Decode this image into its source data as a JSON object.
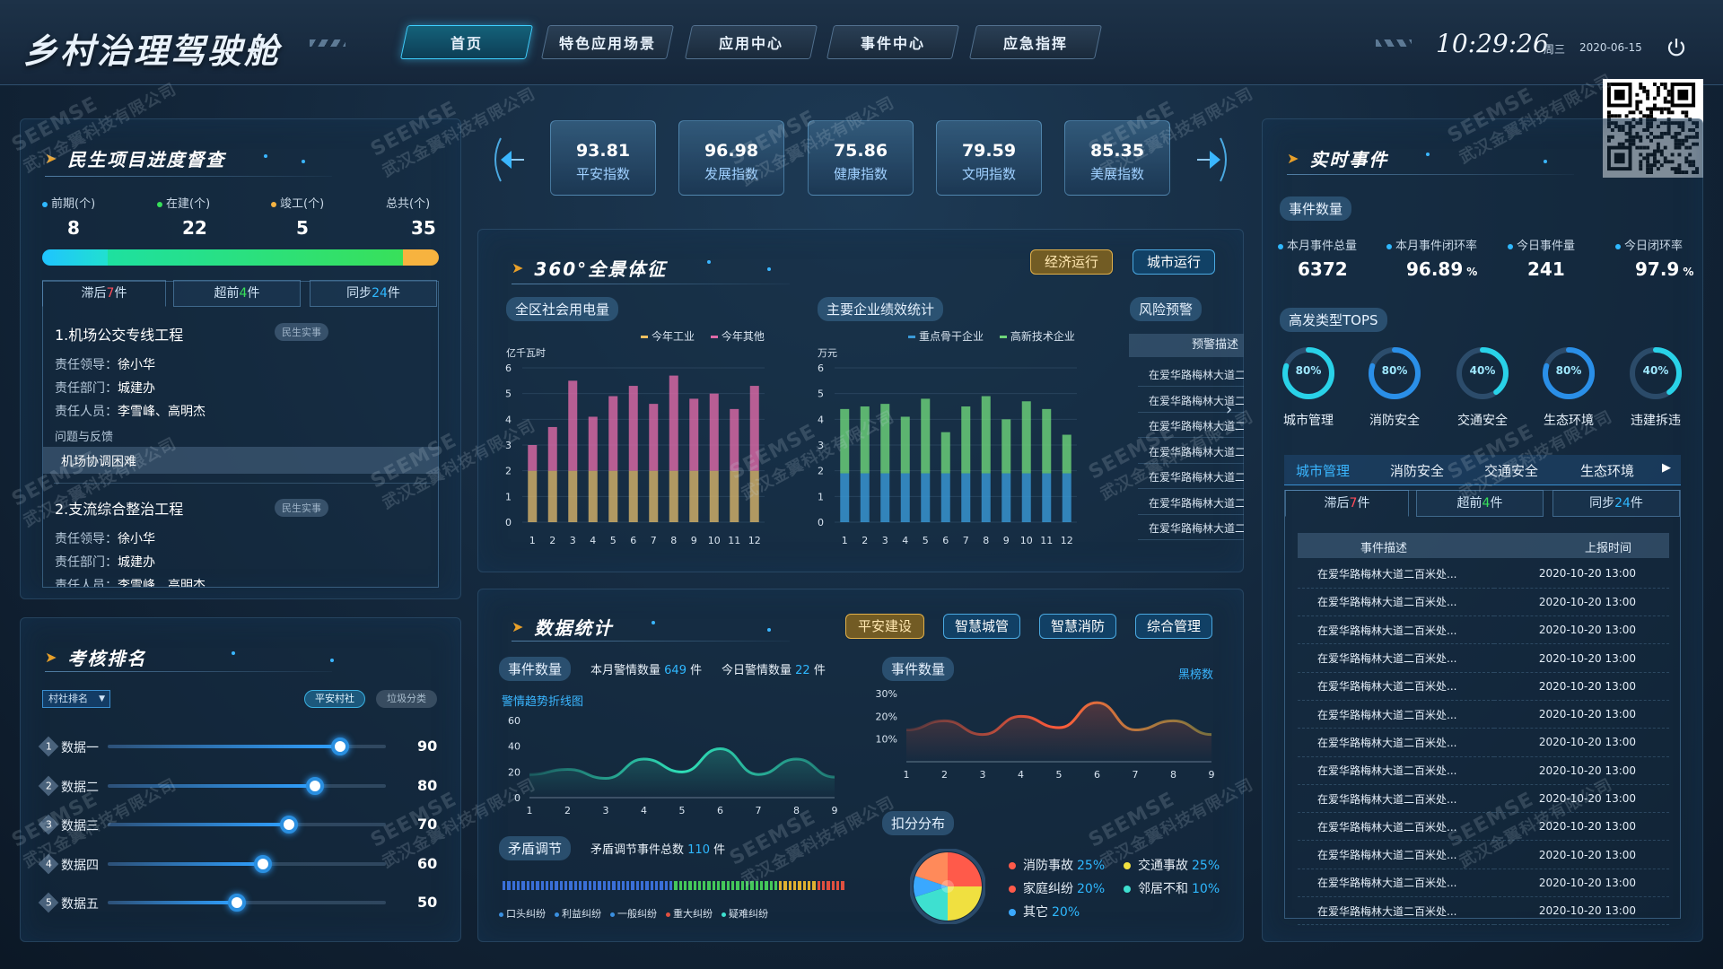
{
  "header": {
    "title": "乡村治理驾驶舱",
    "nav": [
      "首页",
      "特色应用场景",
      "应用中心",
      "事件中心",
      "应急指挥"
    ],
    "time": "10:29:26",
    "weekday": "周三",
    "date": "2020-06-15"
  },
  "indices": [
    {
      "value": "93.81",
      "label": "平安指数"
    },
    {
      "value": "96.98",
      "label": "发展指数"
    },
    {
      "value": "75.86",
      "label": "健康指数"
    },
    {
      "value": "79.59",
      "label": "文明指数"
    },
    {
      "value": "85.35",
      "label": "美展指数"
    }
  ],
  "progress": {
    "title": "民生项目进度督查",
    "stats": [
      {
        "label": "前期(个)",
        "value": "8",
        "color": "#2fb8ff"
      },
      {
        "label": "在建(个)",
        "value": "22",
        "color": "#37e05a"
      },
      {
        "label": "竣工(个)",
        "value": "5",
        "color": "#f5b342"
      },
      {
        "label": "总共(个)",
        "value": "35",
        "color": ""
      }
    ],
    "tabs": [
      {
        "pre": "滞后",
        "num": "7",
        "post": "件"
      },
      {
        "pre": "超前",
        "num": "4",
        "post": "件"
      },
      {
        "pre": "同步",
        "num": "24",
        "post": "件"
      }
    ],
    "projects": [
      {
        "name": "1.机场公交专线工程",
        "tag": "民生实事",
        "leader_label": "责任领导：",
        "leader": "徐小华",
        "dept_label": "责任部门：",
        "dept": "城建办",
        "staff_label": "责任人员：",
        "staff": "李雪峰、高明杰",
        "issue_label": "问题与反馈",
        "issue": "机场协调困难"
      },
      {
        "name": "2.支流综合整治工程",
        "tag": "民生实事",
        "leader_label": "责任领导：",
        "leader": "徐小华",
        "dept_label": "责任部门：",
        "dept": "城建办",
        "staff_label": "责任人员：",
        "staff": "李雪峰、高明杰"
      }
    ]
  },
  "ranking": {
    "title": "考核排名",
    "select": "村社排名",
    "buttons": [
      "平安村社",
      "垃圾分类"
    ],
    "items": [
      {
        "rank": "1",
        "name": "数据一",
        "value": 90
      },
      {
        "rank": "2",
        "name": "数据二",
        "value": 80
      },
      {
        "rank": "3",
        "name": "数据三",
        "value": 70
      },
      {
        "rank": "4",
        "name": "数据四",
        "value": 60
      },
      {
        "rank": "5",
        "name": "数据五",
        "value": 50
      }
    ]
  },
  "panorama": {
    "title": "360°全景体征",
    "buttons": [
      "经济运行",
      "城市运行"
    ],
    "power": {
      "title": "全区社会用电量",
      "unit": "亿千瓦时",
      "legend": [
        "今年工业",
        "今年其他"
      ]
    },
    "perf": {
      "title": "主要企业绩效统计",
      "unit": "万元",
      "legend": [
        "重点骨干企业",
        "高新技术企业"
      ]
    },
    "risk": {
      "title": "风险预警",
      "header": "预警描述",
      "rows": [
        "在爱华路梅林大道二",
        "在爱华路梅林大道二",
        "在爱华路梅林大道二",
        "在爱华路梅林大道二",
        "在爱华路梅林大道二",
        "在爱华路梅林大道二",
        "在爱华路梅林大道二"
      ]
    }
  },
  "stats": {
    "title": "数据统计",
    "buttons": [
      "平安建设",
      "智慧城管",
      "智慧消防",
      "综合管理"
    ],
    "events_chip": "事件数量",
    "month_label": "本月警情数量",
    "month_value": "649",
    "month_unit": "件",
    "today_label": "今日警情数量",
    "today_value": "22",
    "today_unit": "件",
    "trend_title": "警情趋势折线图",
    "events_chip2": "事件数量",
    "blacklist": "黑榜数",
    "conflict_chip": "矛盾调节",
    "conflict_label": "矛盾调节事件总数",
    "conflict_value": "110",
    "conflict_unit": "件",
    "conflict_legend": [
      "口头纠纷",
      "利益纠纷",
      "一般纠纷",
      "重大纠纷",
      "疑难纠纷"
    ],
    "deduct_chip": "扣分分布",
    "pie_legend": [
      {
        "name": "消防事故",
        "value": "25%",
        "color": "#ff5a4a"
      },
      {
        "name": "交通事故",
        "value": "25%",
        "color": "#f0e040"
      },
      {
        "name": "家庭纠纷",
        "value": "20%",
        "color": "#ff5a4a"
      },
      {
        "name": "邻居不和",
        "value": "10%",
        "color": "#3ee0d0"
      },
      {
        "name": "其它",
        "value": "20%",
        "color": "#3aa8ff"
      }
    ]
  },
  "realtime": {
    "title": "实时事件",
    "count_chip": "事件数量",
    "metrics": [
      {
        "label": "本月事件总量",
        "value": "6372",
        "unit": ""
      },
      {
        "label": "本月事件闭环率",
        "value": "96.89",
        "unit": "%"
      },
      {
        "label": "今日事件量",
        "value": "241",
        "unit": ""
      },
      {
        "label": "今日闭环率",
        "value": "97.9",
        "unit": "%"
      }
    ],
    "tops_chip": "高发类型TOPS",
    "rings": [
      {
        "pct": "80%",
        "label": "城市管理",
        "value": 0.8
      },
      {
        "pct": "80%",
        "label": "消防安全",
        "value": 0.8
      },
      {
        "pct": "40%",
        "label": "交通安全",
        "value": 0.4
      },
      {
        "pct": "80%",
        "label": "生态环境",
        "value": 0.8
      },
      {
        "pct": "40%",
        "label": "违建拆违",
        "value": 0.4
      }
    ],
    "cat_tabs": [
      "城市管理",
      "消防安全",
      "交通安全",
      "生态环境"
    ],
    "sub_tabs": [
      {
        "pre": "滞后",
        "num": "7",
        "post": "件"
      },
      {
        "pre": "超前",
        "num": "4",
        "post": "件"
      },
      {
        "pre": "同步",
        "num": "24",
        "post": "件"
      }
    ],
    "table_headers": [
      "事件描述",
      "上报时间"
    ],
    "rows": [
      {
        "desc": "在爱华路梅林大道二百米处...",
        "time": "2020-10-20 13:00"
      },
      {
        "desc": "在爱华路梅林大道二百米处...",
        "time": "2020-10-20 13:00"
      },
      {
        "desc": "在爱华路梅林大道二百米处...",
        "time": "2020-10-20 13:00"
      },
      {
        "desc": "在爱华路梅林大道二百米处...",
        "time": "2020-10-20 13:00"
      },
      {
        "desc": "在爱华路梅林大道二百米处...",
        "time": "2020-10-20 13:00"
      },
      {
        "desc": "在爱华路梅林大道二百米处...",
        "time": "2020-10-20 13:00"
      },
      {
        "desc": "在爱华路梅林大道二百米处...",
        "time": "2020-10-20 13:00"
      },
      {
        "desc": "在爱华路梅林大道二百米处...",
        "time": "2020-10-20 13:00"
      },
      {
        "desc": "在爱华路梅林大道二百米处...",
        "time": "2020-10-20 13:00"
      },
      {
        "desc": "在爱华路梅林大道二百米处...",
        "time": "2020-10-20 13:00"
      },
      {
        "desc": "在爱华路梅林大道二百米处...",
        "time": "2020-10-20 13:00"
      },
      {
        "desc": "在爱华路梅林大道二百米处...",
        "time": "2020-10-20 13:00"
      },
      {
        "desc": "在爱华路梅林大道二百米处...",
        "time": "2020-10-20 13:00"
      }
    ]
  },
  "watermark": {
    "brand": "SEEMSE",
    "company": "武汉金翼科技有限公司"
  },
  "chart_data": [
    {
      "type": "bar",
      "title": "全区社会用电量",
      "ylabel": "亿千瓦时",
      "categories": [
        "1",
        "2",
        "3",
        "4",
        "5",
        "6",
        "7",
        "8",
        "9",
        "10",
        "11",
        "12"
      ],
      "ylim": [
        0,
        6
      ],
      "stacked": true,
      "series": [
        {
          "name": "今年工业",
          "color": "#d8b46a",
          "values": [
            2.0,
            2.0,
            2.0,
            2.0,
            2.0,
            2.0,
            2.0,
            2.0,
            2.0,
            2.0,
            2.0,
            2.0
          ]
        },
        {
          "name": "今年其他",
          "color": "#e06aa8",
          "values": [
            1.0,
            1.7,
            3.5,
            2.1,
            2.9,
            3.3,
            2.6,
            3.7,
            2.8,
            3.0,
            2.4,
            3.3
          ]
        }
      ]
    },
    {
      "type": "bar",
      "title": "主要企业绩效统计",
      "ylabel": "万元",
      "categories": [
        "1",
        "2",
        "3",
        "4",
        "5",
        "6",
        "7",
        "8",
        "9",
        "10",
        "11",
        "12"
      ],
      "ylim": [
        0,
        6
      ],
      "stacked": true,
      "series": [
        {
          "name": "重点骨干企业",
          "color": "#3a9ad8",
          "values": [
            1.9,
            1.9,
            1.9,
            1.9,
            1.9,
            1.9,
            1.9,
            1.9,
            1.9,
            1.9,
            1.9,
            1.9
          ]
        },
        {
          "name": "高新技术企业",
          "color": "#6ed67a",
          "values": [
            2.5,
            2.6,
            2.7,
            2.2,
            2.9,
            1.6,
            2.6,
            3.0,
            2.1,
            2.8,
            2.5,
            1.5
          ]
        }
      ]
    },
    {
      "type": "area",
      "title": "警情趋势折线图",
      "x": [
        "1",
        "2",
        "3",
        "4",
        "5",
        "6",
        "7",
        "8",
        "9"
      ],
      "ylim": [
        0,
        60
      ],
      "yticks": [
        0,
        20,
        40,
        60
      ],
      "series": [
        {
          "name": "",
          "color": "#2fe0b8",
          "values": [
            18,
            22,
            15,
            30,
            20,
            38,
            18,
            30,
            16
          ]
        }
      ]
    },
    {
      "type": "area",
      "title": "",
      "x": [
        "1",
        "2",
        "3",
        "4",
        "5",
        "6",
        "7",
        "8",
        "9"
      ],
      "ylim": [
        0,
        30
      ],
      "yticks": [
        "10%",
        "20%",
        "30%"
      ],
      "series": [
        {
          "name": "",
          "color": "#ff8a3a",
          "values": [
            14,
            18,
            12,
            20,
            15,
            26,
            14,
            18,
            12
          ]
        }
      ]
    },
    {
      "type": "pie",
      "title": "扣分分布",
      "categories": [
        "消防事故",
        "交通事故",
        "家庭纠纷",
        "邻居不和",
        "其它"
      ],
      "values": [
        25,
        25,
        20,
        10,
        20
      ]
    }
  ]
}
